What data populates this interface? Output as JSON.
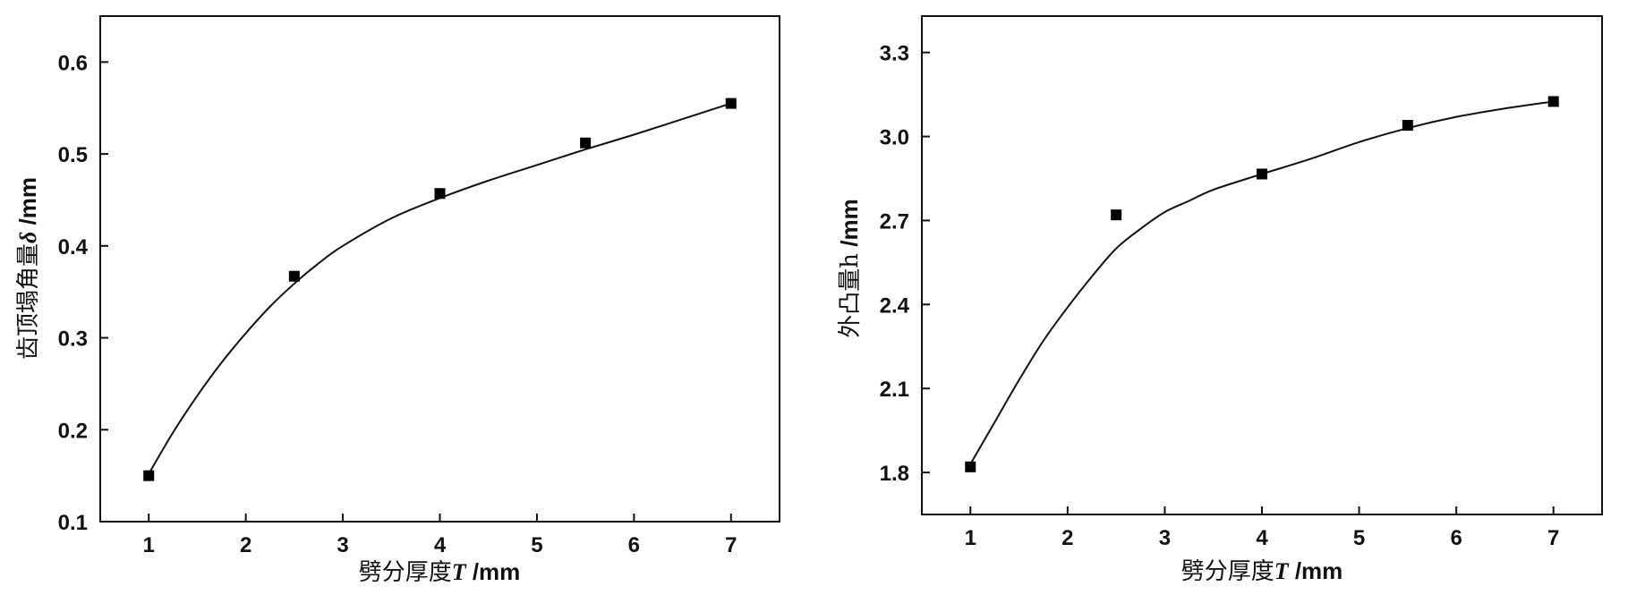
{
  "chart_data": [
    {
      "type": "scatter",
      "xlabel": "劈分厚度",
      "xlabel_var": "T",
      "xlabel_unit": " /mm",
      "ylabel": "齿顶塌角量",
      "ylabel_var": "δ",
      "ylabel_unit": " /mm",
      "xlim": [
        0.5,
        7.5
      ],
      "ylim": [
        0.1,
        0.65
      ],
      "xticks": [
        1,
        2,
        3,
        4,
        5,
        6,
        7
      ],
      "yticks": [
        "0.1",
        "0.2",
        "0.3",
        "0.4",
        "0.5",
        "0.6"
      ],
      "x": [
        1,
        2.5,
        4,
        5.5,
        7
      ],
      "y": [
        0.15,
        0.367,
        0.457,
        0.512,
        0.555
      ],
      "fit_curve": {
        "x": [
          1,
          1.25,
          1.5,
          1.75,
          2,
          2.25,
          2.5,
          2.75,
          3,
          3.5,
          4,
          4.5,
          5,
          5.5,
          6,
          6.5,
          7
        ],
        "y": [
          0.152,
          0.197,
          0.237,
          0.273,
          0.305,
          0.334,
          0.359,
          0.381,
          0.4,
          0.43,
          0.452,
          0.471,
          0.488,
          0.505,
          0.521,
          0.538,
          0.555
        ]
      },
      "grid": false
    },
    {
      "type": "scatter",
      "xlabel": "劈分厚度",
      "xlabel_var": "T",
      "xlabel_unit": " /mm",
      "ylabel": "外凸量h",
      "ylabel_var": "",
      "ylabel_unit": " /mm",
      "xlim": [
        0.5,
        7.5
      ],
      "ylim": [
        1.65,
        3.43
      ],
      "xticks": [
        1,
        2,
        3,
        4,
        5,
        6,
        7
      ],
      "yticks": [
        "1.8",
        "2.1",
        "2.4",
        "2.7",
        "3.0",
        "3.3"
      ],
      "x": [
        1,
        2.5,
        4,
        5.5,
        7
      ],
      "y": [
        1.82,
        2.72,
        2.866,
        3.04,
        3.125
      ],
      "fit_curve": {
        "x": [
          1,
          1.25,
          1.5,
          1.75,
          2,
          2.25,
          2.5,
          2.75,
          3,
          3.25,
          3.5,
          4,
          4.5,
          5,
          5.5,
          6,
          6.5,
          7
        ],
        "y": [
          1.83,
          1.98,
          2.13,
          2.27,
          2.39,
          2.5,
          2.6,
          2.67,
          2.73,
          2.77,
          2.81,
          2.866,
          2.92,
          2.98,
          3.03,
          3.07,
          3.1,
          3.125
        ]
      },
      "grid": false
    }
  ]
}
